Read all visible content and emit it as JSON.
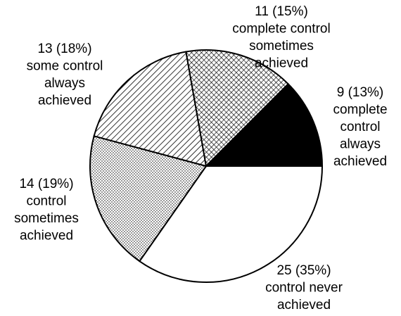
{
  "chart_data": {
    "type": "pie",
    "categories": [
      [
        "control never",
        "achieved"
      ],
      [
        "control",
        "sometimes",
        "achieved"
      ],
      [
        "some control",
        "always",
        "achieved"
      ],
      [
        "complete control",
        "sometimes",
        "achieved"
      ],
      [
        "complete",
        "control",
        "always",
        "achieved"
      ]
    ],
    "values": [
      25,
      14,
      13,
      11,
      9
    ],
    "value_labels": [
      "25 (35%)",
      "14 (19%)",
      "13 (18%)",
      "11 (15%)",
      "9 (13%)"
    ],
    "fills": [
      "plain",
      "dots",
      "hatch",
      "cross",
      "solid"
    ]
  }
}
